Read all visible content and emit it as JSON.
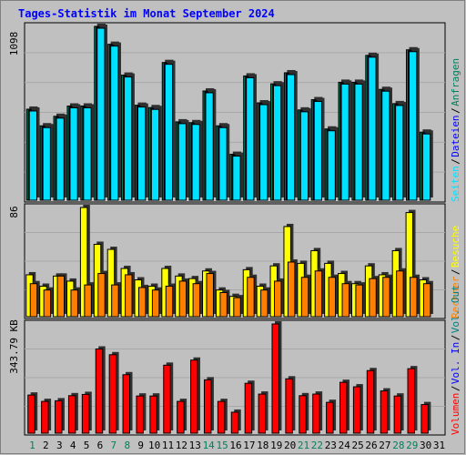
{
  "title": "Tages-Statistik im Monat September 2024",
  "panels": {
    "top": {
      "max_label": "1098"
    },
    "mid": {
      "max_label": "86"
    },
    "bottom": {
      "max_label": "343.79 KB"
    }
  },
  "legend": {
    "top": [
      {
        "text": "Anfragen",
        "color": "#00805c"
      },
      {
        "text": "Dateien",
        "color": "#0000ff"
      },
      {
        "text": "Seiten",
        "color": "#00e0ff"
      }
    ],
    "mid": [
      {
        "text": "Besuche",
        "color": "#ffff00"
      },
      {
        "text": "Rechner",
        "color": "#ff8000"
      }
    ],
    "bottom": [
      {
        "text": "Vol. Out",
        "color": "#008080"
      },
      {
        "text": "Vol. In",
        "color": "#0000ff"
      },
      {
        "text": "Volumen",
        "color": "#ff0000"
      }
    ]
  },
  "colors": {
    "title": "#0000ff",
    "weekday_label": "#000000",
    "weekend_label": "#00805c",
    "background": "#c0c0c0",
    "panel_border": "#000000",
    "gridline": "#ffffff"
  },
  "chart_data": {
    "type": "bar",
    "title": "Tages-Statistik im Monat September 2024",
    "categories": [
      "1",
      "2",
      "3",
      "4",
      "5",
      "6",
      "7",
      "8",
      "9",
      "10",
      "11",
      "12",
      "13",
      "14",
      "15",
      "16",
      "17",
      "18",
      "19",
      "20",
      "21",
      "22",
      "23",
      "24",
      "25",
      "26",
      "27",
      "28",
      "29",
      "30",
      "31"
    ],
    "weekend_days": [
      "1",
      "7",
      "8",
      "14",
      "15",
      "21",
      "22",
      "28",
      "29"
    ],
    "panels": [
      {
        "id": "top",
        "ylim": [
          0,
          1098
        ],
        "series": [
          {
            "name": "Anfragen",
            "color": "#00805c",
            "values": [
              575,
              470,
              530,
              595,
              595,
              1098,
              985,
              790,
              600,
              585,
              870,
              495,
              490,
              690,
              470,
              290,
              785,
              615,
              735,
              805,
              570,
              635,
              450,
              745,
              745,
              915,
              700,
              610,
              950,
              430,
              0
            ]
          },
          {
            "name": "Dateien",
            "color": "#0000ff",
            "values": [
              575,
              470,
              530,
              595,
              595,
              1098,
              985,
              790,
              600,
              585,
              870,
              495,
              490,
              690,
              470,
              290,
              785,
              615,
              735,
              805,
              570,
              635,
              450,
              745,
              745,
              915,
              700,
              610,
              950,
              430,
              0
            ]
          },
          {
            "name": "Seiten",
            "color": "#00e0ff",
            "values": [
              575,
              470,
              530,
              595,
              595,
              1098,
              985,
              790,
              600,
              585,
              870,
              495,
              490,
              690,
              470,
              290,
              785,
              615,
              735,
              805,
              570,
              635,
              450,
              745,
              745,
              915,
              700,
              610,
              950,
              430,
              0
            ]
          }
        ]
      },
      {
        "id": "mid",
        "ylim": [
          0,
          86
        ],
        "series": [
          {
            "name": "Besuche",
            "color": "#ffff00",
            "values": [
              33,
              24,
              32,
              28,
              86,
              57,
              53,
              38,
              29,
              24,
              38,
              32,
              30,
              36,
              21,
              16,
              37,
              24,
              40,
              71,
              42,
              52,
              42,
              34,
              26,
              40,
              33,
              52,
              82,
              29,
              0
            ]
          },
          {
            "name": "Rechner",
            "color": "#ff8000",
            "values": [
              26,
              21,
              32,
              21,
              25,
              34,
              25,
              33,
              23,
              21,
              24,
              28,
              26,
              34,
              19,
              15,
              31,
              21,
              28,
              43,
              31,
              36,
              31,
              26,
              25,
              30,
              31,
              36,
              31,
              26,
              0
            ]
          }
        ]
      },
      {
        "id": "bottom",
        "ylim": [
          0,
          343.79
        ],
        "yunit": "KB",
        "series": [
          {
            "name": "Volumen",
            "color": "#ff0000",
            "values": [
              120,
              100,
              102,
              118,
              122,
              265,
              247,
              184,
              117,
              117,
              214,
              100,
              230,
              168,
              100,
              66,
              157,
              123,
              343.79,
              171,
              118,
              123,
              97,
              160,
              146,
              197,
              133,
              117,
              203,
              90,
              0
            ]
          }
        ]
      }
    ]
  }
}
